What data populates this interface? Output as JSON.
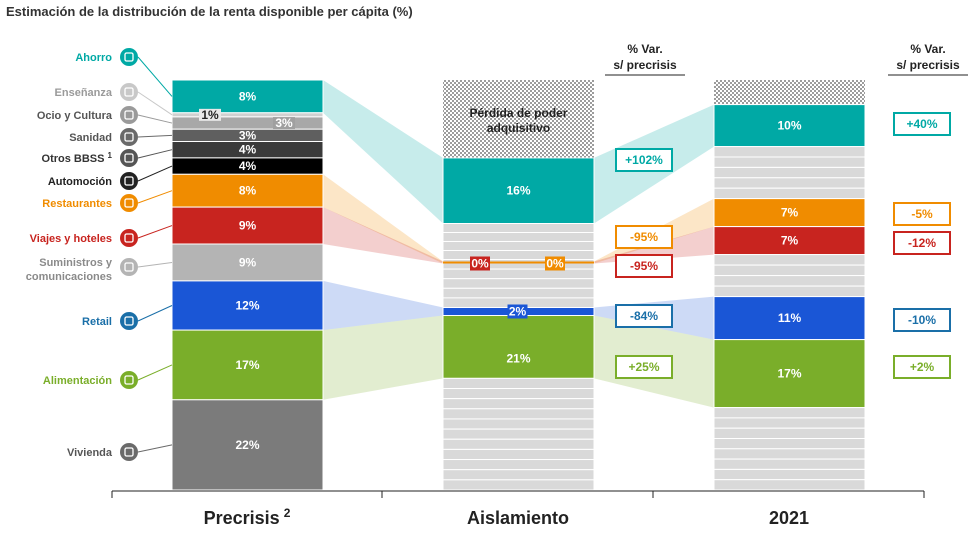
{
  "title": "Estimación de la distribución de la renta disponible per cápita (%)",
  "colors": {
    "ahorro": "#00a9a5",
    "enseñanza": "#d0d0d0",
    "ocio": "#a8a8a8",
    "sanidad": "#5f5f5f",
    "otros": "#3a3a3a",
    "automocion": "#000000",
    "restaurantes": "#f08c00",
    "viajes": "#c8241f",
    "suministros": "#b4b4b4",
    "retail": "#1a56d6",
    "alimentacion": "#7aae2a",
    "vivienda": "#7b7b7b",
    "lost": "#d9d9d9"
  },
  "chart_data": {
    "type": "bar",
    "title": "Estimación de la distribución de la renta disponible per cápita (%)",
    "stacked": true,
    "columns": [
      "Precrisis",
      "Aislamiento",
      "2021"
    ],
    "column_superscripts": [
      "2",
      "",
      ""
    ],
    "categories": [
      {
        "key": "ahorro",
        "label": "Ahorro",
        "sup": ""
      },
      {
        "key": "enseñanza",
        "label": "Enseñanza",
        "sup": ""
      },
      {
        "key": "ocio",
        "label": "Ocio y Cultura",
        "sup": ""
      },
      {
        "key": "sanidad",
        "label": "Sanidad",
        "sup": ""
      },
      {
        "key": "otros",
        "label": "Otros BBSS",
        "sup": "1"
      },
      {
        "key": "automocion",
        "label": "Automoción",
        "sup": ""
      },
      {
        "key": "restaurantes",
        "label": "Restaurantes",
        "sup": ""
      },
      {
        "key": "viajes",
        "label": "Viajes y hoteles",
        "sup": ""
      },
      {
        "key": "suministros",
        "label": "Suministros y comunicaciones",
        "sup": ""
      },
      {
        "key": "retail",
        "label": "Retail",
        "sup": ""
      },
      {
        "key": "alimentacion",
        "label": "Alimentación",
        "sup": ""
      },
      {
        "key": "vivienda",
        "label": "Vivienda",
        "sup": ""
      }
    ],
    "precrisis": [
      {
        "key": "ahorro",
        "value": 8,
        "label": "8%"
      },
      {
        "key": "enseñanza",
        "value": 1,
        "label": "1%"
      },
      {
        "key": "ocio",
        "value": 3,
        "label": "3%"
      },
      {
        "key": "sanidad",
        "value": 3,
        "label": "3%"
      },
      {
        "key": "otros",
        "value": 4,
        "label": "4%"
      },
      {
        "key": "automocion",
        "value": 4,
        "label": "4%"
      },
      {
        "key": "restaurantes",
        "value": 8,
        "label": "8%"
      },
      {
        "key": "viajes",
        "value": 9,
        "label": "9%"
      },
      {
        "key": "suministros",
        "value": 9,
        "label": "9%"
      },
      {
        "key": "retail",
        "value": 12,
        "label": "12%"
      },
      {
        "key": "alimentacion",
        "value": 17,
        "label": "17%"
      },
      {
        "key": "vivienda",
        "value": 22,
        "label": "22%"
      }
    ],
    "aislamiento": {
      "lost_label": "Pérdida de poder adquisitivo",
      "lost_share": 0.19,
      "segments": [
        {
          "key": "ahorro",
          "value": 16,
          "label": "16%"
        },
        {
          "key": "viajes",
          "value": 0,
          "label": "0%"
        },
        {
          "key": "restaurantes",
          "value": 0,
          "label": "0%"
        },
        {
          "key": "retail",
          "value": 2,
          "label": "2%"
        },
        {
          "key": "alimentacion",
          "value": 21,
          "label": "21%"
        }
      ]
    },
    "y2021": {
      "lost_share": 0.06,
      "segments": [
        {
          "key": "ahorro",
          "value": 10,
          "label": "10%"
        },
        {
          "key": "restaurantes",
          "value": 7,
          "label": "7%"
        },
        {
          "key": "viajes",
          "value": 7,
          "label": "7%"
        },
        {
          "key": "retail",
          "value": 11,
          "label": "11%"
        },
        {
          "key": "alimentacion",
          "value": 17,
          "label": "17%"
        }
      ]
    },
    "var_header": "% Var. s/ precrisis",
    "var_aislamiento": [
      {
        "key": "ahorro",
        "label": "+102%"
      },
      {
        "key": "restaurantes",
        "label": "-95%"
      },
      {
        "key": "viajes",
        "label": "-95%"
      },
      {
        "key": "retail",
        "label": "-84%"
      },
      {
        "key": "alimentacion",
        "label": "+25%"
      }
    ],
    "var_2021": [
      {
        "key": "ahorro",
        "label": "+40%"
      },
      {
        "key": "restaurantes",
        "label": "-5%"
      },
      {
        "key": "viajes",
        "label": "-12%"
      },
      {
        "key": "retail",
        "label": "-10%"
      },
      {
        "key": "alimentacion",
        "label": "+2%"
      }
    ]
  }
}
